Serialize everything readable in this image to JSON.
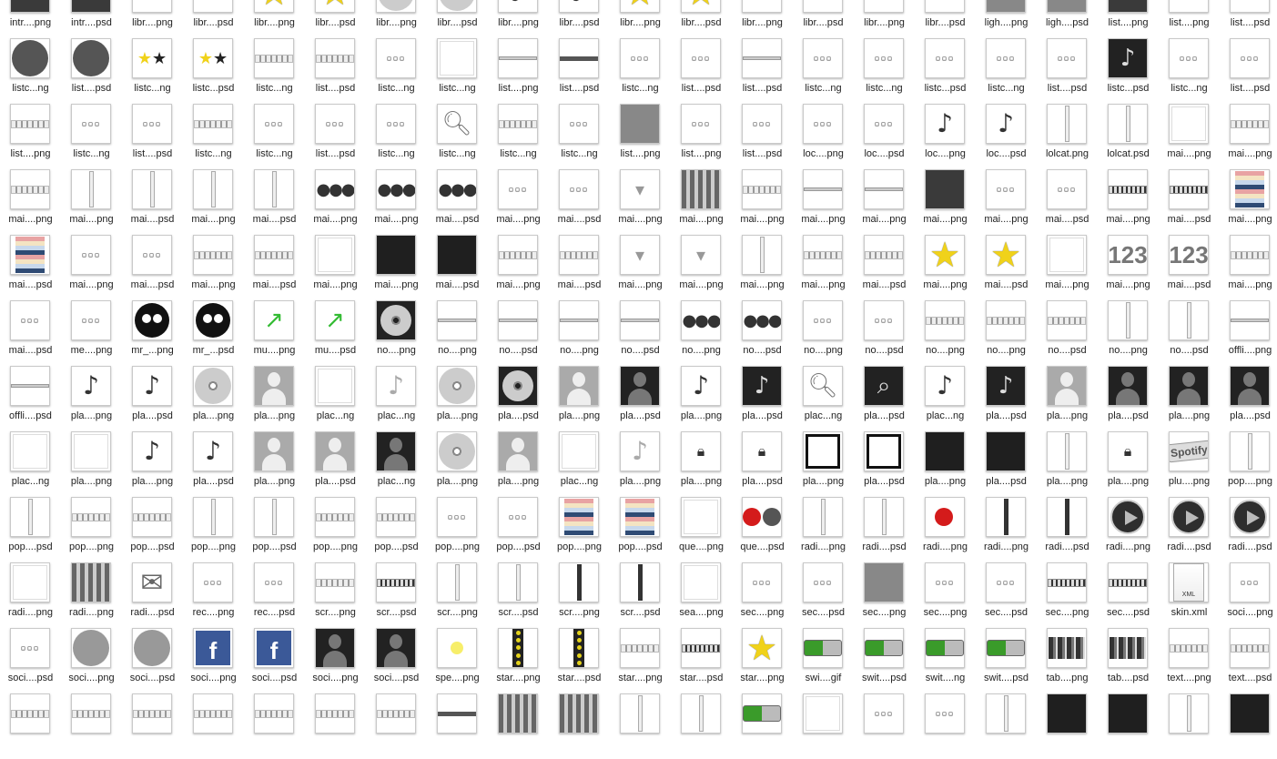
{
  "window": {
    "title": ""
  },
  "files": [
    {
      "label": "intr....png",
      "glyph": "sq-dark"
    },
    {
      "label": "intr....psd",
      "glyph": "sq-dark"
    },
    {
      "label": "libr....png",
      "glyph": "strip"
    },
    {
      "label": "libr....psd",
      "glyph": "strip"
    },
    {
      "label": "libr....png",
      "glyph": "star"
    },
    {
      "label": "libr....psd",
      "glyph": "star"
    },
    {
      "label": "libr....png",
      "glyph": "cd"
    },
    {
      "label": "libr....psd",
      "glyph": "cd"
    },
    {
      "label": "libr....png",
      "glyph": "note"
    },
    {
      "label": "libr....psd",
      "glyph": "note"
    },
    {
      "label": "libr....png",
      "glyph": "star"
    },
    {
      "label": "libr....psd",
      "glyph": "star"
    },
    {
      "label": "libr....png",
      "glyph": "bar"
    },
    {
      "label": "libr....psd",
      "glyph": "bar"
    },
    {
      "label": "libr....png",
      "glyph": "strip"
    },
    {
      "label": "libr....psd",
      "glyph": "strip"
    },
    {
      "label": "ligh....png",
      "glyph": "sq-gray"
    },
    {
      "label": "ligh....psd",
      "glyph": "sq-gray"
    },
    {
      "label": "list....png",
      "glyph": "sq-dark"
    },
    {
      "label": "list....png",
      "glyph": "bar"
    },
    {
      "label": "list....psd",
      "glyph": "bar"
    },
    {
      "label": "listc...ng",
      "glyph": "circ-dark"
    },
    {
      "label": "list....psd",
      "glyph": "circ-dark"
    },
    {
      "label": "listc...ng",
      "glyph": "star-pair"
    },
    {
      "label": "listc...psd",
      "glyph": "star-pair"
    },
    {
      "label": "listc...ng",
      "glyph": "strip"
    },
    {
      "label": "list....psd",
      "glyph": "strip"
    },
    {
      "label": "listc...ng",
      "glyph": "mini"
    },
    {
      "label": "listc...ng",
      "glyph": "sq-white"
    },
    {
      "label": "list....png",
      "glyph": "bar"
    },
    {
      "label": "list....psd",
      "glyph": "bar-dark"
    },
    {
      "label": "listc...ng",
      "glyph": "mini"
    },
    {
      "label": "list....psd",
      "glyph": "mini"
    },
    {
      "label": "list....psd",
      "glyph": "bar"
    },
    {
      "label": "listc...ng",
      "glyph": "mini"
    },
    {
      "label": "listc...ng",
      "glyph": "mini"
    },
    {
      "label": "listc...psd",
      "glyph": "mini"
    },
    {
      "label": "listc...ng",
      "glyph": "mini"
    },
    {
      "label": "list....psd",
      "glyph": "mini"
    },
    {
      "label": "listc...psd",
      "glyph": "note-w"
    },
    {
      "label": "listc...ng",
      "glyph": "mini"
    },
    {
      "label": "list....psd",
      "glyph": "mini"
    },
    {
      "label": "list....png",
      "glyph": "strip"
    },
    {
      "label": "listc...ng",
      "glyph": "mini"
    },
    {
      "label": "list....psd",
      "glyph": "mini"
    },
    {
      "label": "listc...ng",
      "glyph": "strip"
    },
    {
      "label": "listc...ng",
      "glyph": "mini"
    },
    {
      "label": "list....psd",
      "glyph": "mini"
    },
    {
      "label": "listc...ng",
      "glyph": "mini"
    },
    {
      "label": "listc...ng",
      "glyph": "mag"
    },
    {
      "label": "listc...ng",
      "glyph": "strip"
    },
    {
      "label": "listc...ng",
      "glyph": "mini"
    },
    {
      "label": "list....png",
      "glyph": "sq-gray"
    },
    {
      "label": "list....png",
      "glyph": "mini"
    },
    {
      "label": "list....psd",
      "glyph": "mini"
    },
    {
      "label": "loc....png",
      "glyph": "mini"
    },
    {
      "label": "loc....psd",
      "glyph": "mini"
    },
    {
      "label": "loc....png",
      "glyph": "note"
    },
    {
      "label": "loc....psd",
      "glyph": "note"
    },
    {
      "label": "lolcat.png",
      "glyph": "vbar"
    },
    {
      "label": "lolcat.psd",
      "glyph": "vbar"
    },
    {
      "label": "mai....png",
      "glyph": "sq-white"
    },
    {
      "label": "mai....png",
      "glyph": "strip"
    },
    {
      "label": "mai....png",
      "glyph": "strip"
    },
    {
      "label": "mai....png",
      "glyph": "vbar"
    },
    {
      "label": "mai....psd",
      "glyph": "vbar"
    },
    {
      "label": "mai....png",
      "glyph": "vbar"
    },
    {
      "label": "mai....psd",
      "glyph": "vbar"
    },
    {
      "label": "mai....png",
      "glyph": "dots-dark"
    },
    {
      "label": "mai....png",
      "glyph": "dots-dark"
    },
    {
      "label": "mai....psd",
      "glyph": "dots-dark"
    },
    {
      "label": "mai....png",
      "glyph": "mini"
    },
    {
      "label": "mai....psd",
      "glyph": "mini"
    },
    {
      "label": "mai....png",
      "glyph": "chev"
    },
    {
      "label": "mai....png",
      "glyph": "gradbar"
    },
    {
      "label": "mai....png",
      "glyph": "strip"
    },
    {
      "label": "mai....png",
      "glyph": "bar"
    },
    {
      "label": "mai....png",
      "glyph": "bar"
    },
    {
      "label": "mai....png",
      "glyph": "sq-dark"
    },
    {
      "label": "mai....png",
      "glyph": "mini"
    },
    {
      "label": "mai....psd",
      "glyph": "mini"
    },
    {
      "label": "mai....png",
      "glyph": "strip-dark"
    },
    {
      "label": "mai....psd",
      "glyph": "strip-dark"
    },
    {
      "label": "mai....png",
      "glyph": "stripes-col"
    },
    {
      "label": "mai....psd",
      "glyph": "stripes-col"
    },
    {
      "label": "mai....png",
      "glyph": "mini"
    },
    {
      "label": "mai....psd",
      "glyph": "mini"
    },
    {
      "label": "mai....png",
      "glyph": "strip"
    },
    {
      "label": "mai....psd",
      "glyph": "strip"
    },
    {
      "label": "mai....png",
      "glyph": "sq-white"
    },
    {
      "label": "mai....png",
      "glyph": "sq-black"
    },
    {
      "label": "mai....psd",
      "glyph": "sq-black"
    },
    {
      "label": "mai....png",
      "glyph": "strip"
    },
    {
      "label": "mai....psd",
      "glyph": "strip"
    },
    {
      "label": "mai....png",
      "glyph": "chev"
    },
    {
      "label": "mai....png",
      "glyph": "chev"
    },
    {
      "label": "mai....png",
      "glyph": "vbar"
    },
    {
      "label": "mai....png",
      "glyph": "strip"
    },
    {
      "label": "mai....psd",
      "glyph": "strip"
    },
    {
      "label": "mai....png",
      "glyph": "star"
    },
    {
      "label": "mai....psd",
      "glyph": "star"
    },
    {
      "label": "mai....png",
      "glyph": "sq-white"
    },
    {
      "label": "mai....png",
      "glyph": "num123"
    },
    {
      "label": "mai....psd",
      "glyph": "num123"
    },
    {
      "label": "mai....png",
      "glyph": "strip"
    },
    {
      "label": "mai....psd",
      "glyph": "mini"
    },
    {
      "label": "me....png",
      "glyph": "mini"
    },
    {
      "label": "mr_...png",
      "glyph": "bug"
    },
    {
      "label": "mr_...psd",
      "glyph": "bug"
    },
    {
      "label": "mu....png",
      "glyph": "arrow-up"
    },
    {
      "label": "mu....psd",
      "glyph": "arrow-up"
    },
    {
      "label": "no....png",
      "glyph": "cd-d"
    },
    {
      "label": "no....png",
      "glyph": "bar"
    },
    {
      "label": "no....psd",
      "glyph": "bar"
    },
    {
      "label": "no....png",
      "glyph": "bar"
    },
    {
      "label": "no....psd",
      "glyph": "bar"
    },
    {
      "label": "no....png",
      "glyph": "dots-dark"
    },
    {
      "label": "no....psd",
      "glyph": "dots-dark"
    },
    {
      "label": "no....png",
      "glyph": "mini"
    },
    {
      "label": "no....psd",
      "glyph": "mini"
    },
    {
      "label": "no....png",
      "glyph": "strip"
    },
    {
      "label": "no....png",
      "glyph": "strip"
    },
    {
      "label": "no....psd",
      "glyph": "strip"
    },
    {
      "label": "no....png",
      "glyph": "vbar"
    },
    {
      "label": "no....psd",
      "glyph": "vbar"
    },
    {
      "label": "offli....png",
      "glyph": "bar"
    },
    {
      "label": "offli....psd",
      "glyph": "bar"
    },
    {
      "label": "pla....png",
      "glyph": "note"
    },
    {
      "label": "pla....psd",
      "glyph": "note"
    },
    {
      "label": "pla....png",
      "glyph": "cd"
    },
    {
      "label": "pla....png",
      "glyph": "person"
    },
    {
      "label": "plac...ng",
      "glyph": "sq-white"
    },
    {
      "label": "plac...ng",
      "glyph": "note-lt"
    },
    {
      "label": "pla....png",
      "glyph": "cd"
    },
    {
      "label": "pla....psd",
      "glyph": "cd-d"
    },
    {
      "label": "pla....png",
      "glyph": "person"
    },
    {
      "label": "pla....psd",
      "glyph": "person-d"
    },
    {
      "label": "pla....png",
      "glyph": "note"
    },
    {
      "label": "pla....psd",
      "glyph": "note-w"
    },
    {
      "label": "plac...ng",
      "glyph": "mag"
    },
    {
      "label": "pla....psd",
      "glyph": "mag-d"
    },
    {
      "label": "plac...ng",
      "glyph": "note"
    },
    {
      "label": "pla....psd",
      "glyph": "note-w"
    },
    {
      "label": "pla....png",
      "glyph": "person"
    },
    {
      "label": "pla....psd",
      "glyph": "person-d"
    },
    {
      "label": "pla....png",
      "glyph": "person-d"
    },
    {
      "label": "pla....psd",
      "glyph": "person-d"
    },
    {
      "label": "plac...ng",
      "glyph": "sq-white"
    },
    {
      "label": "pla....png",
      "glyph": "sq-white"
    },
    {
      "label": "pla....png",
      "glyph": "note"
    },
    {
      "label": "pla....psd",
      "glyph": "note"
    },
    {
      "label": "pla....png",
      "glyph": "person"
    },
    {
      "label": "pla....psd",
      "glyph": "person"
    },
    {
      "label": "plac...ng",
      "glyph": "person-d"
    },
    {
      "label": "pla....png",
      "glyph": "cd"
    },
    {
      "label": "pla....png",
      "glyph": "person"
    },
    {
      "label": "plac...ng",
      "glyph": "sq-white"
    },
    {
      "label": "pla....png",
      "glyph": "note-lt"
    },
    {
      "label": "pla....png",
      "glyph": "lock"
    },
    {
      "label": "pla....psd",
      "glyph": "lock"
    },
    {
      "label": "pla....png",
      "glyph": "box-open"
    },
    {
      "label": "pla....psd",
      "glyph": "box-open"
    },
    {
      "label": "pla....png",
      "glyph": "sq-black"
    },
    {
      "label": "pla....psd",
      "glyph": "sq-black"
    },
    {
      "label": "pla....png",
      "glyph": "vbar"
    },
    {
      "label": "pla....png",
      "glyph": "lock"
    },
    {
      "label": "plu....png",
      "glyph": "spotify"
    },
    {
      "label": "pop....png",
      "glyph": "vbar"
    },
    {
      "label": "pop....psd",
      "glyph": "vbar"
    },
    {
      "label": "pop....png",
      "glyph": "strip"
    },
    {
      "label": "pop....psd",
      "glyph": "strip"
    },
    {
      "label": "pop....png",
      "glyph": "vbar"
    },
    {
      "label": "pop....psd",
      "glyph": "vbar"
    },
    {
      "label": "pop....png",
      "glyph": "strip"
    },
    {
      "label": "pop....psd",
      "glyph": "strip"
    },
    {
      "label": "pop....png",
      "glyph": "mini"
    },
    {
      "label": "pop....psd",
      "glyph": "mini"
    },
    {
      "label": "pop....png",
      "glyph": "stripes-col"
    },
    {
      "label": "pop....psd",
      "glyph": "stripes-col"
    },
    {
      "label": "que....png",
      "glyph": "sq-white"
    },
    {
      "label": "que....psd",
      "glyph": "reddots"
    },
    {
      "label": "radi....png",
      "glyph": "vbar"
    },
    {
      "label": "radi....psd",
      "glyph": "vbar"
    },
    {
      "label": "radi....png",
      "glyph": "reddot1"
    },
    {
      "label": "radi....png",
      "glyph": "vbar-dark"
    },
    {
      "label": "radi....psd",
      "glyph": "vbar-dark"
    },
    {
      "label": "radi....png",
      "glyph": "circ-play"
    },
    {
      "label": "radi....psd",
      "glyph": "circ-play"
    },
    {
      "label": "radi....psd",
      "glyph": "circ-play"
    },
    {
      "label": "radi....png",
      "glyph": "sq-white"
    },
    {
      "label": "radi....png",
      "glyph": "gradbar"
    },
    {
      "label": "radi....psd",
      "glyph": "env"
    },
    {
      "label": "rec....png",
      "glyph": "mini"
    },
    {
      "label": "rec....psd",
      "glyph": "mini"
    },
    {
      "label": "scr....png",
      "glyph": "strip"
    },
    {
      "label": "scr....psd",
      "glyph": "strip-dark"
    },
    {
      "label": "scr....png",
      "glyph": "vbar"
    },
    {
      "label": "scr....psd",
      "glyph": "vbar"
    },
    {
      "label": "scr....png",
      "glyph": "vbar-dark"
    },
    {
      "label": "scr....psd",
      "glyph": "vbar-dark"
    },
    {
      "label": "sea....png",
      "glyph": "sq-white"
    },
    {
      "label": "sec....png",
      "glyph": "mini"
    },
    {
      "label": "sec....psd",
      "glyph": "mini"
    },
    {
      "label": "sec....png",
      "glyph": "sq-gray"
    },
    {
      "label": "sec....png",
      "glyph": "mini"
    },
    {
      "label": "sec....psd",
      "glyph": "mini"
    },
    {
      "label": "sec....png",
      "glyph": "strip-dark"
    },
    {
      "label": "sec....psd",
      "glyph": "strip-dark"
    },
    {
      "label": "skin.xml",
      "glyph": "xml"
    },
    {
      "label": "soci....png",
      "glyph": "mini"
    },
    {
      "label": "soci....psd",
      "glyph": "mini"
    },
    {
      "label": "soci....png",
      "glyph": "circ-gray"
    },
    {
      "label": "soci....psd",
      "glyph": "circ-gray"
    },
    {
      "label": "soci....png",
      "glyph": "fb"
    },
    {
      "label": "soci....psd",
      "glyph": "fb"
    },
    {
      "label": "soci....png",
      "glyph": "person-d"
    },
    {
      "label": "soci....psd",
      "glyph": "person-d"
    },
    {
      "label": "spe....png",
      "glyph": "yellowdot"
    },
    {
      "label": "star....png",
      "glyph": "stack"
    },
    {
      "label": "star....psd",
      "glyph": "stack"
    },
    {
      "label": "star....png",
      "glyph": "strip"
    },
    {
      "label": "star....psd",
      "glyph": "strip-dark"
    },
    {
      "label": "star....png",
      "glyph": "star"
    },
    {
      "label": "swi....gif",
      "glyph": "toggle"
    },
    {
      "label": "swit....psd",
      "glyph": "toggle"
    },
    {
      "label": "swit....ng",
      "glyph": "toggle"
    },
    {
      "label": "swit....psd",
      "glyph": "toggle"
    },
    {
      "label": "tab....png",
      "glyph": "tabbar"
    },
    {
      "label": "tab....psd",
      "glyph": "tabbar"
    },
    {
      "label": "text....png",
      "glyph": "strip"
    },
    {
      "label": "text....psd",
      "glyph": "strip"
    }
  ],
  "partial_row": [
    {
      "glyph": "strip"
    },
    {
      "glyph": "strip"
    },
    {
      "glyph": "strip"
    },
    {
      "glyph": "strip"
    },
    {
      "glyph": "strip"
    },
    {
      "glyph": "strip"
    },
    {
      "glyph": "strip"
    },
    {
      "glyph": "bar-dark"
    },
    {
      "glyph": "gradbar"
    },
    {
      "glyph": "gradbar"
    },
    {
      "glyph": "vbar"
    },
    {
      "glyph": "vbar"
    },
    {
      "glyph": "toggle"
    },
    {
      "glyph": "sq-white"
    },
    {
      "glyph": "mini"
    },
    {
      "glyph": "mini"
    },
    {
      "glyph": "vbar"
    },
    {
      "glyph": "sq-black"
    },
    {
      "glyph": "sq-black"
    },
    {
      "glyph": "vbar"
    },
    {
      "glyph": "sq-black"
    }
  ],
  "glyph_text": {
    "star": "★",
    "star-pair": "★★",
    "note": "♪",
    "note-lt": "♪",
    "note-w": "♪",
    "mag": "🔍︎",
    "mag-d": "⌕",
    "mini": "▫▫▫",
    "dots-dark": "●●●",
    "chev": "▾",
    "env": "✉",
    "arrow-up": "↗",
    "lock": "🔒︎",
    "num123": "123",
    "fb": "f",
    "spotify": "Spotify",
    "xml": "XML"
  }
}
